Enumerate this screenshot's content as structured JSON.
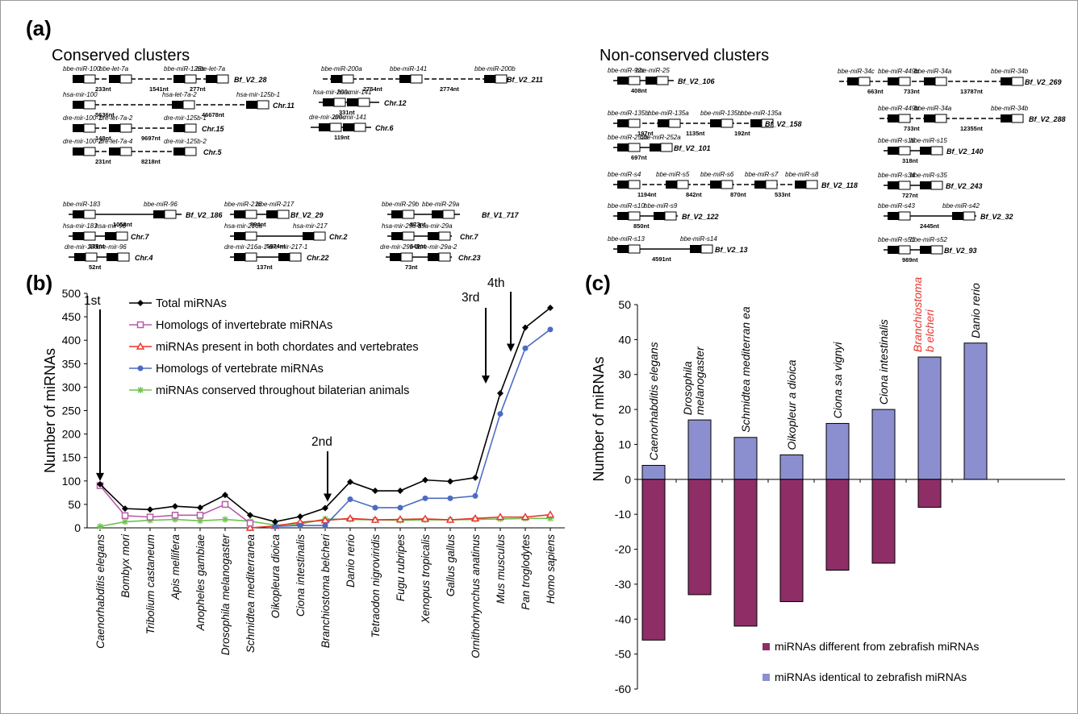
{
  "panel_a": {
    "label": "(a)",
    "conserved_title": "Conserved clusters",
    "nonconserved_title": "Non-conserved clusters",
    "clusters": [
      {
        "genes": [
          "bbe-miR-100",
          "bbe-let-7a",
          "bbe-miR-125b",
          "bbe-let-7a"
        ],
        "dists": [
          "233nt",
          "1541nt",
          "277nt"
        ],
        "chr": "Bf_V2_28"
      },
      {
        "genes": [
          "hsa-mir-100",
          "hsa-let-7a-2",
          "hsa-mir-125b-1"
        ],
        "dists": [
          "5636nt",
          "46678nt"
        ],
        "chr": "Chr.11"
      },
      {
        "genes": [
          "dre-mir-100-1",
          "dre-let-7a-2",
          "dre-mir-125b-1"
        ],
        "dists": [
          "148nt",
          "9697nt"
        ],
        "chr": "Chr.15"
      },
      {
        "genes": [
          "dre-mir-100-2",
          "dre-let-7a-4",
          "dre-mir-125b-2"
        ],
        "dists": [
          "231nt",
          "8218nt"
        ],
        "chr": "Chr.5"
      },
      {
        "genes": [
          "bbe-miR-200a",
          "bbe-miR-141",
          "bbe-miR-200b"
        ],
        "dists": [
          "2754nt",
          "2774nt"
        ],
        "chr": "Bf_V2_211"
      },
      {
        "genes": [
          "hsa-mir-200c",
          "hsa-mir-141"
        ],
        "dists": [
          "331nt"
        ],
        "chr": "Chr.12"
      },
      {
        "genes": [
          "dre-mir-200c",
          "dre-mir-141"
        ],
        "dists": [
          "119nt"
        ],
        "chr": "Chr.6"
      },
      {
        "genes": [
          "bbe-miR-183",
          "bbe-miR-96"
        ],
        "dists": [
          "1058nt"
        ],
        "chr": "Bf_V2_186"
      },
      {
        "genes": [
          "hsa-mir-183",
          "hsa-mir-96"
        ],
        "dists": [
          "136nt"
        ],
        "chr": "Chr.7"
      },
      {
        "genes": [
          "dre-mir-183",
          "dre-mir-96"
        ],
        "dists": [
          "52nt"
        ],
        "chr": "Chr.4"
      },
      {
        "genes": [
          "bbe-miR-216",
          "bbe-miR-217"
        ],
        "dists": [
          "894nt"
        ],
        "chr": "Bf_V2_29"
      },
      {
        "genes": [
          "hsa-mir-216a",
          "hsa-mir-217"
        ],
        "dists": [
          "5874nt"
        ],
        "chr": "Chr.2"
      },
      {
        "genes": [
          "dre-mir-216a-1",
          "dre-mir-217-1"
        ],
        "dists": [
          "137nt"
        ],
        "chr": "Chr.22"
      },
      {
        "genes": [
          "bbe-miR-29b",
          "bbe-miR-29a"
        ],
        "dists": [
          "873nt"
        ],
        "chr": "Bf_V1_717"
      },
      {
        "genes": [
          "hsa-mir-29b-1",
          "hsa-mir-29a"
        ],
        "dists": [
          "649nt"
        ],
        "chr": "Chr.7"
      },
      {
        "genes": [
          "dre-mir-29b-2",
          "dre-mir-29a-2"
        ],
        "dists": [
          "73nt"
        ],
        "chr": "Chr.23"
      },
      {
        "genes": [
          "bbe-miR-92c",
          "bbe-miR-25"
        ],
        "dists": [
          "408nt"
        ],
        "chr": "Bf_V2_106"
      },
      {
        "genes": [
          "bbe-miR-135b",
          "bbe-miR-135a",
          "bbe-miR-135b",
          "bbe-miR-135a"
        ],
        "dists": [
          "197nt",
          "1135nt",
          "192nt"
        ],
        "chr": "Bf_V2_158"
      },
      {
        "genes": [
          "bbe-miR-252b",
          "bbe-miR-252a"
        ],
        "dists": [
          "697nt"
        ],
        "chr": "Bf_V2_101"
      },
      {
        "genes": [
          "bbe-miR-s4",
          "bbe-miR-s5",
          "bbe-miR-s6",
          "bbe-miR-s7",
          "bbe-miR-s8"
        ],
        "dists": [
          "1194nt",
          "842nt",
          "870nt",
          "533nt"
        ],
        "chr": "Bf_V2_118"
      },
      {
        "genes": [
          "bbe-miR-s10",
          "bbe-miR-s9"
        ],
        "dists": [
          "850nt"
        ],
        "chr": "Bf_V2_122"
      },
      {
        "genes": [
          "bbe-miR-s13",
          "bbe-miR-s14"
        ],
        "dists": [
          "4591nt"
        ],
        "chr": "Bf_V2_13"
      },
      {
        "genes": [
          "bbe-miR-34c",
          "bbe-miR-449b",
          "bbe-miR-34a",
          "bbe-miR-34b"
        ],
        "dists": [
          "663nt",
          "733nt",
          "13787nt"
        ],
        "chr": "Bf_V2_269"
      },
      {
        "genes": [
          "bbe-miR-449b",
          "bbe-miR-34a",
          "bbe-miR-34b"
        ],
        "dists": [
          "733nt",
          "12355nt"
        ],
        "chr": "Bf_V2_288"
      },
      {
        "genes": [
          "bbe-miR-s16",
          "bbe-miR-s15"
        ],
        "dists": [
          "318nt"
        ],
        "chr": "Bf_V2_140"
      },
      {
        "genes": [
          "bbe-miR-s34",
          "bbe-miR-s35"
        ],
        "dists": [
          "727nt"
        ],
        "chr": "Bf_V2_243"
      },
      {
        "genes": [
          "bbe-miR-s43",
          "bbe-miR-s42"
        ],
        "dists": [
          "2445nt"
        ],
        "chr": "Bf_V2_32"
      },
      {
        "genes": [
          "bbe-miR-s51",
          "bbe-miR-s52"
        ],
        "dists": [
          "989nt"
        ],
        "chr": "Bf_V2_93"
      }
    ]
  },
  "chart_data": [
    {
      "panel": "(b)",
      "type": "line",
      "xlabel": "",
      "ylabel": "Number of miRNAs",
      "ylim": [
        0,
        500
      ],
      "yticks": [
        0,
        50,
        100,
        150,
        200,
        250,
        300,
        350,
        400,
        450,
        500
      ],
      "categories": [
        "Caenorhabditis elegans",
        "Bombyx mori",
        "Tribolium castaneum",
        "Apis mellifera",
        "Anopheles gambiae",
        "Drosophila melanogaster",
        "Schmidtea mediterranea",
        "Oikopleura dioica",
        "Ciona intestinalis",
        "Branchiostoma belcheri",
        "Danio rerio",
        "Tetraodon nigroviridis",
        "Fugu rubripes",
        "Xenopus tropicalis",
        "Gallus gallus",
        "Ornithorhynchus anatinus",
        "Mus musculus",
        "Pan troglodytes",
        "Homo sapiens"
      ],
      "series": [
        {
          "name": "Total miRNAs",
          "color": "#000000",
          "marker": "diamond",
          "values": [
            93,
            41,
            39,
            46,
            43,
            70,
            27,
            13,
            24,
            42,
            98,
            79,
            79,
            102,
            99,
            107,
            287,
            427,
            469
          ]
        },
        {
          "name": "Homologs of invertebrate miRNAs",
          "color": "#b85ca8",
          "marker": "square",
          "values": [
            90,
            26,
            23,
            27,
            27,
            50,
            10,
            null,
            null,
            null,
            null,
            null,
            null,
            null,
            null,
            null,
            null,
            null,
            null
          ]
        },
        {
          "name": "miRNAs present in both chordates and vertebrates",
          "color": "#e8312b",
          "marker": "triangle",
          "values": [
            null,
            null,
            null,
            null,
            null,
            null,
            0,
            4,
            12,
            16,
            20,
            17,
            18,
            19,
            17,
            20,
            23,
            23,
            28
          ]
        },
        {
          "name": "Homologs of vertebrate miRNAs",
          "color": "#4a6cc2",
          "marker": "circle",
          "values": [
            null,
            null,
            null,
            null,
            null,
            null,
            null,
            3,
            5,
            5,
            61,
            43,
            43,
            63,
            63,
            68,
            243,
            383,
            423
          ]
        },
        {
          "name": "miRNAs conserved throughout bilaterian animals",
          "color": "#6ec34e",
          "marker": "star",
          "values": [
            3,
            13,
            16,
            18,
            15,
            18,
            14,
            6,
            8,
            19,
            18,
            17,
            16,
            17,
            17,
            18,
            19,
            20,
            20
          ]
        }
      ],
      "annotations": [
        {
          "label": "1st",
          "category": "Caenorhabditis elegans"
        },
        {
          "label": "2nd",
          "category": "Branchiostoma belcheri"
        },
        {
          "label": "3rd",
          "category": "Mus musculus"
        },
        {
          "label": "4th",
          "category": "Pan troglodytes"
        }
      ]
    },
    {
      "panel": "(c)",
      "type": "bar",
      "xlabel": "",
      "ylabel": "Number of miRNAs",
      "ylim": [
        -60,
        50
      ],
      "yticks": [
        -60,
        -50,
        -40,
        -30,
        -20,
        -10,
        0,
        10,
        20,
        30,
        40,
        50
      ],
      "categories": [
        "Caenorhabditis elegans",
        "Drosophila melanogaster",
        "Schmidtea mediterranea",
        "Oikopleura dioica",
        "Ciona savignyi",
        "Ciona intestinalis",
        "Branchiostoma belcheri",
        "Danio rerio"
      ],
      "category_display": [
        [
          "Caenorhabditis elegans"
        ],
        [
          "Drosophila",
          "melanogaster"
        ],
        [
          "Schmidtea mediterran ea"
        ],
        [
          "Oikopleur a dioica"
        ],
        [
          "Ciona sa vignyi"
        ],
        [
          "Ciona intestinalis"
        ],
        [
          "Branchiostoma",
          "b elcheri"
        ],
        [
          "Danio  rerio"
        ]
      ],
      "highlight_category": "Branchiostoma belcheri",
      "highlight_color": "#e8312b",
      "series": [
        {
          "name": "miRNAs identical to zebrafish miRNAs",
          "color": "#8c8fcf",
          "values": [
            4,
            17,
            12,
            7,
            16,
            20,
            35,
            39
          ]
        },
        {
          "name": "miRNAs different from zebrafish miRNAs",
          "color": "#8e2d66",
          "values": [
            -46,
            -33,
            -42,
            -35,
            -26,
            -24,
            -8,
            null
          ]
        }
      ],
      "legend": [
        "miRNAs different from zebrafish miRNAs",
        "miRNAs identical to zebrafish miRNAs"
      ],
      "legend_position": "bottom-right"
    }
  ]
}
